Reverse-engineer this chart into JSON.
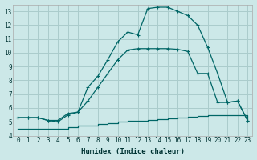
{
  "xlabel": "Humidex (Indice chaleur)",
  "bg_color": "#cce8e8",
  "grid_color": "#aacccc",
  "line_color": "#006666",
  "xlim": [
    -0.5,
    23.5
  ],
  "ylim": [
    4,
    13.5
  ],
  "xticks": [
    0,
    1,
    2,
    3,
    4,
    5,
    6,
    7,
    8,
    9,
    10,
    11,
    12,
    13,
    14,
    15,
    16,
    17,
    18,
    19,
    20,
    21,
    22,
    23
  ],
  "yticks": [
    4,
    5,
    6,
    7,
    8,
    9,
    10,
    11,
    12,
    13
  ],
  "line1_x": [
    0,
    1,
    2,
    3,
    4,
    5,
    6,
    7,
    8,
    9,
    10,
    11,
    12,
    13,
    14,
    15,
    16,
    17,
    18,
    19,
    20,
    21,
    22,
    23
  ],
  "line1_y": [
    4.5,
    4.5,
    4.5,
    4.5,
    4.5,
    4.6,
    4.7,
    4.75,
    4.85,
    4.9,
    5.0,
    5.05,
    5.1,
    5.15,
    5.2,
    5.25,
    5.3,
    5.35,
    5.4,
    5.45,
    5.5,
    5.5,
    5.5,
    5.1
  ],
  "line2_x": [
    0,
    1,
    2,
    3,
    4,
    5,
    6,
    7,
    8,
    9,
    10,
    11,
    12,
    13,
    14,
    15,
    16,
    17,
    18,
    19,
    20,
    21,
    22,
    23
  ],
  "line2_y": [
    5.3,
    5.3,
    5.3,
    5.1,
    5.0,
    5.5,
    5.7,
    6.5,
    7.5,
    8.5,
    9.5,
    10.2,
    10.3,
    10.3,
    10.3,
    10.3,
    10.25,
    10.1,
    8.5,
    8.5,
    6.4,
    6.4,
    6.5,
    5.1
  ],
  "line3_x": [
    0,
    1,
    2,
    3,
    4,
    5,
    6,
    7,
    8,
    9,
    10,
    11,
    12,
    13,
    14,
    15,
    16,
    17,
    18,
    19,
    20,
    21,
    22,
    23
  ],
  "line3_y": [
    5.3,
    5.3,
    5.3,
    5.1,
    5.1,
    5.6,
    5.7,
    7.5,
    8.3,
    9.5,
    10.8,
    11.5,
    11.3,
    13.2,
    13.3,
    13.3,
    13.0,
    12.7,
    12.0,
    10.4,
    8.5,
    6.4,
    6.5,
    5.1
  ]
}
